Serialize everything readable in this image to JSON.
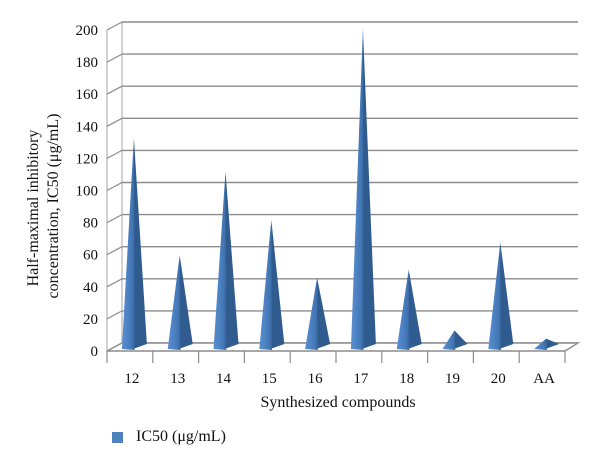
{
  "chart_data": {
    "type": "bar",
    "style": "3d-cone",
    "categories": [
      "12",
      "13",
      "14",
      "15",
      "16",
      "17",
      "18",
      "19",
      "20",
      "AA"
    ],
    "values": [
      130,
      57,
      109,
      79,
      43,
      198,
      48,
      10,
      65,
      5
    ],
    "ylim": [
      0,
      200
    ],
    "yticks": [
      0,
      20,
      40,
      60,
      80,
      100,
      120,
      140,
      160,
      180,
      200
    ],
    "xlabel": "Synthesized compounds",
    "ylabel_lines": [
      "Half-maximal inhibitory",
      "concentration, IC50 (μg/mL)"
    ],
    "legend": {
      "position": "bottom-left",
      "entries": [
        "IC50 (μg/mL)"
      ]
    },
    "series": [
      {
        "name": "IC50 (μg/mL)",
        "color": "#4f81bd",
        "values": [
          130,
          57,
          109,
          79,
          43,
          198,
          48,
          10,
          65,
          5
        ]
      }
    ],
    "grid": true
  }
}
